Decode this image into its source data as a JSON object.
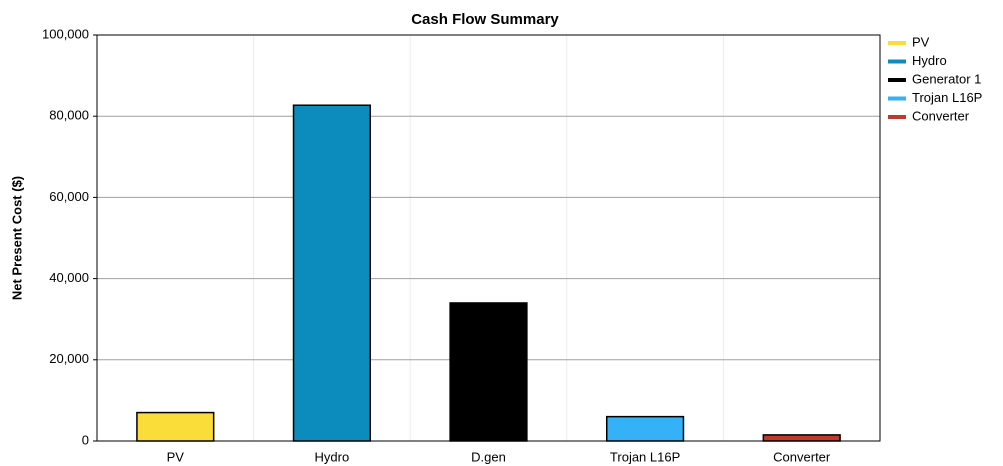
{
  "chart_data": {
    "type": "bar",
    "title": "Cash Flow Summary",
    "y_label": "Net Present Cost ($)",
    "categories": [
      "PV",
      "Hydro",
      "D.gen",
      "Trojan L16P",
      "Converter"
    ],
    "series": [
      {
        "name": "PV",
        "color": "#fbdd3a",
        "values": [
          7000,
          null,
          null,
          null,
          null
        ]
      },
      {
        "name": "Hydro",
        "color": "#0b8cbd",
        "values": [
          null,
          82700,
          null,
          null,
          null
        ]
      },
      {
        "name": "Generator 1",
        "color": "#000000",
        "values": [
          null,
          null,
          34000,
          null,
          null
        ]
      },
      {
        "name": "Trojan L16P",
        "color": "#35b1f7",
        "values": [
          null,
          null,
          null,
          6000,
          null
        ]
      },
      {
        "name": "Converter",
        "color": "#c0392b",
        "values": [
          null,
          null,
          null,
          null,
          1500
        ]
      }
    ],
    "ylim": [
      0,
      100000
    ],
    "yticks": [
      0,
      {
        "value": 20000,
        "label": "20,000"
      },
      {
        "value": 40000,
        "label": "40,000"
      },
      {
        "value": 60000,
        "label": "60,000"
      },
      {
        "value": 80000,
        "label": "80,000"
      },
      {
        "value": 100000,
        "label": "100,000"
      }
    ],
    "grid": true,
    "legend": "right"
  }
}
